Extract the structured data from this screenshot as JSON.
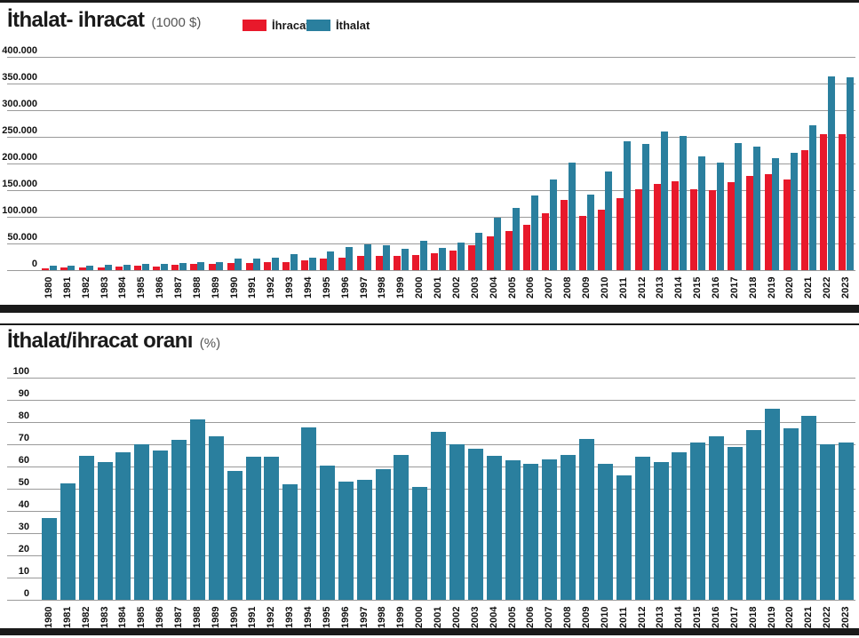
{
  "page": {
    "chart1": {
      "title": "İthalat- ihracat",
      "unit": "(1000 $)"
    },
    "chart2": {
      "title": "İthalat/ihracat oranı",
      "unit": "(%)"
    },
    "legend": [
      {
        "label": "İhracat",
        "color": "#e8192b"
      },
      {
        "label": "İthalat",
        "color": "#2a7f9e"
      }
    ]
  },
  "colors": {
    "ihracat": "#e8192b",
    "ithalat": "#2a7f9e",
    "bar_black": "#1a1a1a",
    "grid": "#9a9a9a"
  },
  "chart_data": [
    {
      "type": "bar",
      "title": "İthalat- ihracat",
      "subtitle": "(1000 $)",
      "legend_position": "top",
      "grid": true,
      "ylim": [
        0,
        400000
      ],
      "y_ticks": [
        {
          "label": "400.000",
          "value": 400000
        },
        {
          "label": "350.000",
          "value": 350000
        },
        {
          "label": "300.000",
          "value": 300000
        },
        {
          "label": "250.000",
          "value": 250000
        },
        {
          "label": "200.000",
          "value": 200000
        },
        {
          "label": "150.000",
          "value": 150000
        },
        {
          "label": "100.000",
          "value": 100000
        },
        {
          "label": "50.000",
          "value": 50000
        },
        {
          "label": "0",
          "value": 0
        }
      ],
      "categories": [
        "1980",
        "1981",
        "1982",
        "1983",
        "1984",
        "1985",
        "1986",
        "1987",
        "1988",
        "1989",
        "1990",
        "1991",
        "1992",
        "1993",
        "1994",
        "1995",
        "1996",
        "1997",
        "1998",
        "1999",
        "2000",
        "2001",
        "2002",
        "2003",
        "2004",
        "2005",
        "2006",
        "2007",
        "2008",
        "2009",
        "2010",
        "2011",
        "2012",
        "2013",
        "2014",
        "2015",
        "2016",
        "2017",
        "2018",
        "2019",
        "2020",
        "2021",
        "2022",
        "2023"
      ],
      "series": [
        {
          "name": "İhracat",
          "color": "#e8192b",
          "values": [
            2910,
            4703,
            5746,
            5728,
            7134,
            7958,
            7457,
            10190,
            11662,
            11625,
            12959,
            13593,
            14715,
            15345,
            18106,
            21637,
            23224,
            26261,
            26974,
            26587,
            27775,
            31334,
            36059,
            47253,
            63167,
            73476,
            85535,
            107272,
            132027,
            102143,
            113883,
            134907,
            152462,
            161481,
            166505,
            150982,
            149247,
            164495,
            177169,
            180833,
            169638,
            225214,
            254170,
            255809
          ]
        },
        {
          "name": "İthalat",
          "color": "#2a7f9e",
          "values": [
            7909,
            8933,
            8843,
            9235,
            10757,
            11343,
            11105,
            14158,
            14335,
            15792,
            22302,
            21047,
            22871,
            29428,
            23270,
            35709,
            43627,
            48559,
            45921,
            40671,
            54503,
            41399,
            51554,
            69340,
            97540,
            116774,
            139576,
            170063,
            201964,
            140928,
            185544,
            240842,
            236545,
            260823,
            251142,
            213619,
            202189,
            238715,
            231152,
            210345,
            219517,
            271424,
            363711,
            361850
          ]
        }
      ]
    },
    {
      "type": "bar",
      "title": "İthalat/ihracat oranı",
      "subtitle": "(%)",
      "grid": true,
      "ylim": [
        0,
        100
      ],
      "y_ticks": [
        {
          "label": "100",
          "value": 100
        },
        {
          "label": "90",
          "value": 90
        },
        {
          "label": "80",
          "value": 80
        },
        {
          "label": "70",
          "value": 70
        },
        {
          "label": "60",
          "value": 60
        },
        {
          "label": "50",
          "value": 50
        },
        {
          "label": "40",
          "value": 40
        },
        {
          "label": "30",
          "value": 30
        },
        {
          "label": "20",
          "value": 20
        },
        {
          "label": "10",
          "value": 10
        },
        {
          "label": "0",
          "value": 0
        }
      ],
      "categories": [
        "1980",
        "1981",
        "1982",
        "1983",
        "1984",
        "1985",
        "1986",
        "1987",
        "1988",
        "1989",
        "1990",
        "1991",
        "1992",
        "1993",
        "1994",
        "1995",
        "1996",
        "1997",
        "1998",
        "1999",
        "2000",
        "2001",
        "2002",
        "2003",
        "2004",
        "2005",
        "2006",
        "2007",
        "2008",
        "2009",
        "2010",
        "2011",
        "2012",
        "2013",
        "2014",
        "2015",
        "2016",
        "2017",
        "2018",
        "2019",
        "2020",
        "2021",
        "2022",
        "2023"
      ],
      "series": [
        {
          "name": "Oran",
          "color": "#2a7f9e",
          "values": [
            36.8,
            52.6,
            65.0,
            62.0,
            66.3,
            70.2,
            67.1,
            72.0,
            81.4,
            73.6,
            58.1,
            64.6,
            64.3,
            52.1,
            77.8,
            60.6,
            53.2,
            54.1,
            58.7,
            65.4,
            51.0,
            75.7,
            69.9,
            68.1,
            64.8,
            62.9,
            61.3,
            63.1,
            65.4,
            72.5,
            61.4,
            56.0,
            64.5,
            61.9,
            66.3,
            70.7,
            73.8,
            68.9,
            76.6,
            86.0,
            77.3,
            83.0,
            69.9,
            70.7
          ]
        }
      ]
    }
  ]
}
